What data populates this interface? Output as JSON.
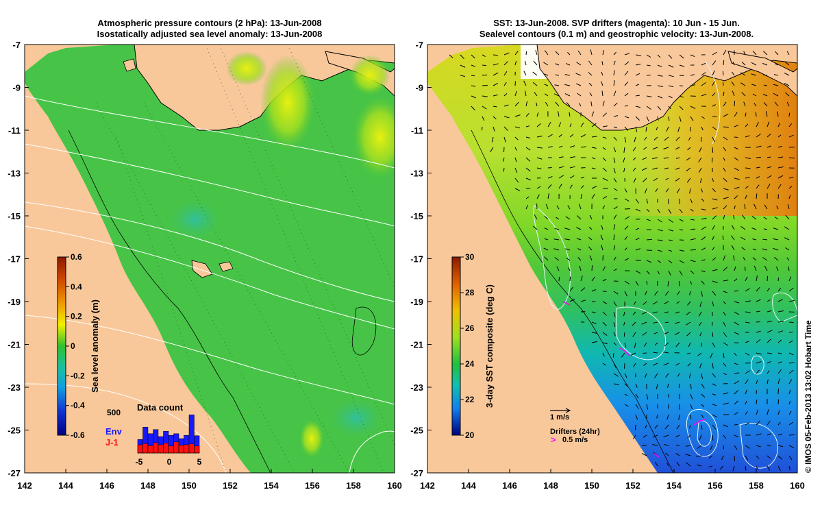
{
  "left_panel": {
    "title_line1": "Atmospheric pressure contours (2 hPa): 13-Jun-2008",
    "title_line2": "Isostatically adjusted sea level anomaly: 13-Jun-2008",
    "x_ticks": [
      "142",
      "144",
      "146",
      "148",
      "150",
      "152",
      "154",
      "156",
      "158",
      "160"
    ],
    "y_ticks": [
      "-7",
      "-9",
      "-11",
      "-13",
      "-15",
      "-17",
      "-19",
      "-21",
      "-23",
      "-25",
      "-27"
    ],
    "colorbar": {
      "label": "Sea level anomaly (m)",
      "ticks": [
        "0.6",
        "0.4",
        "0.2",
        "0",
        "-0.2",
        "-0.4",
        "-0.6"
      ]
    },
    "histogram": {
      "title": "Data count",
      "y_max_label": "500",
      "x_ticks": [
        "-5",
        "0",
        "5"
      ],
      "legend": [
        {
          "name": "Env",
          "color": "#1818ff"
        },
        {
          "name": "J-1",
          "color": "#ff1010"
        }
      ],
      "env_heights": [
        0.33,
        0.63,
        0.47,
        0.57,
        0.4,
        0.53,
        0.43,
        0.47,
        0.35,
        0.43,
        0.93,
        0.42
      ],
      "j1_heights": [
        0.2,
        0.23,
        0.18,
        0.25,
        0.2,
        0.24,
        0.17,
        0.27,
        0.19,
        0.2,
        0.22,
        0.17
      ]
    }
  },
  "right_panel": {
    "title_line1": "SST: 13-Jun-2008. SVP drifters (magenta): 10 Jun - 15 Jun.",
    "title_line2": "Sealevel contours (0.1 m) and geostrophic velocity: 13-Jun-2008.",
    "x_ticks": [
      "142",
      "144",
      "146",
      "148",
      "150",
      "152",
      "154",
      "156",
      "158",
      "160"
    ],
    "y_ticks": [
      "-7",
      "-9",
      "-11",
      "-13",
      "-15",
      "-17",
      "-19",
      "-21",
      "-23",
      "-25",
      "-27"
    ],
    "colorbar": {
      "label": "3-day SST composite (deg C)",
      "ticks": [
        "30",
        "28",
        "26",
        "24",
        "22",
        "20"
      ]
    },
    "velocity_key": "1 m/s",
    "drifter_key_title": "Drifters (24hr)",
    "drifter_key_speed": "0.5 m/s",
    "drifter_key_symbol": ">"
  },
  "credit": "© IMOS 05-Feb-2013 13:02 Hobart Time",
  "colors": {
    "land": "#f9c89a",
    "sla_base": "#44c344",
    "sst_warm": "#e09010",
    "sst_cool": "#2e7df0",
    "drifter": "#ff00ff"
  }
}
